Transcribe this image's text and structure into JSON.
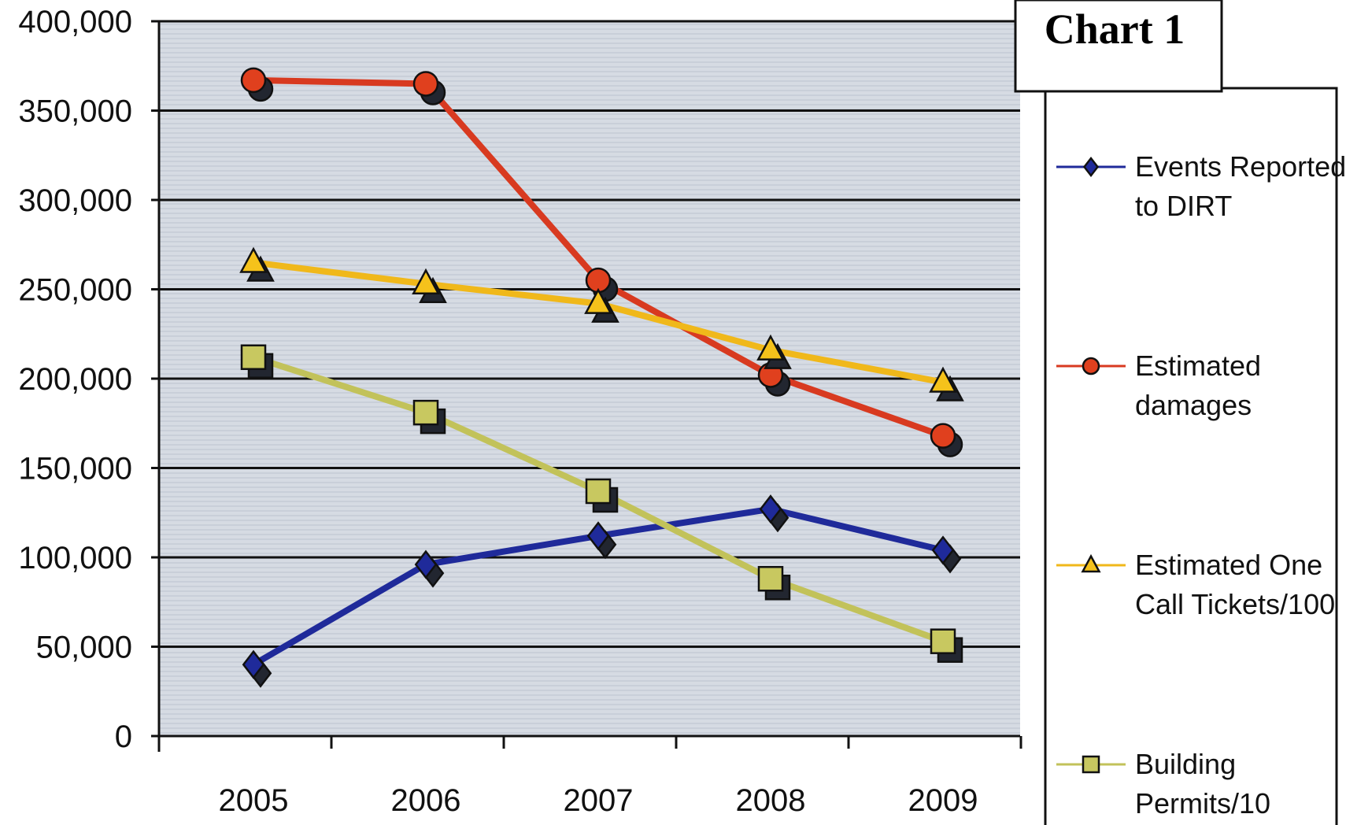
{
  "title": "Chart 1",
  "chart_data": {
    "type": "line",
    "title": "Chart 1",
    "xlabel": "",
    "ylabel": "",
    "categories": [
      "2005",
      "2006",
      "2007",
      "2008",
      "2009"
    ],
    "ylim": [
      0,
      400000
    ],
    "yticks": [
      0,
      50000,
      100000,
      150000,
      200000,
      250000,
      300000,
      350000,
      400000
    ],
    "ytick_labels": [
      "0",
      "50,000",
      "100,000",
      "150,000",
      "200,000",
      "250,000",
      "300,000",
      "350,000",
      "400,000"
    ],
    "grid": true,
    "legend_position": "right",
    "series": [
      {
        "name": "Events Reported to DIRT",
        "legend_lines": [
          "Events Reported",
          "to DIRT"
        ],
        "values": [
          40000,
          96000,
          112000,
          127000,
          104000
        ],
        "color": "#1f2a9a",
        "marker": "diamond",
        "marker_color": "#1f2a9a"
      },
      {
        "name": "Estimated damages",
        "legend_lines": [
          "Estimated",
          "damages"
        ],
        "values": [
          367000,
          365000,
          255000,
          202000,
          168000
        ],
        "color": "#d83a20",
        "marker": "circle",
        "marker_color": "#e0401e"
      },
      {
        "name": "Estimated One Call Tickets/100",
        "legend_lines": [
          "Estimated One",
          "Call Tickets/100"
        ],
        "values": [
          265000,
          253000,
          242000,
          216000,
          198000
        ],
        "color": "#f0b81a",
        "marker": "triangle",
        "marker_color": "#f5c21b"
      },
      {
        "name": "Building Permits/10",
        "legend_lines": [
          "Building",
          "Permits/10"
        ],
        "values": [
          212000,
          181000,
          137000,
          88000,
          53000
        ],
        "color": "#c2c25a",
        "marker": "square",
        "marker_color": "#c8c860"
      }
    ]
  }
}
